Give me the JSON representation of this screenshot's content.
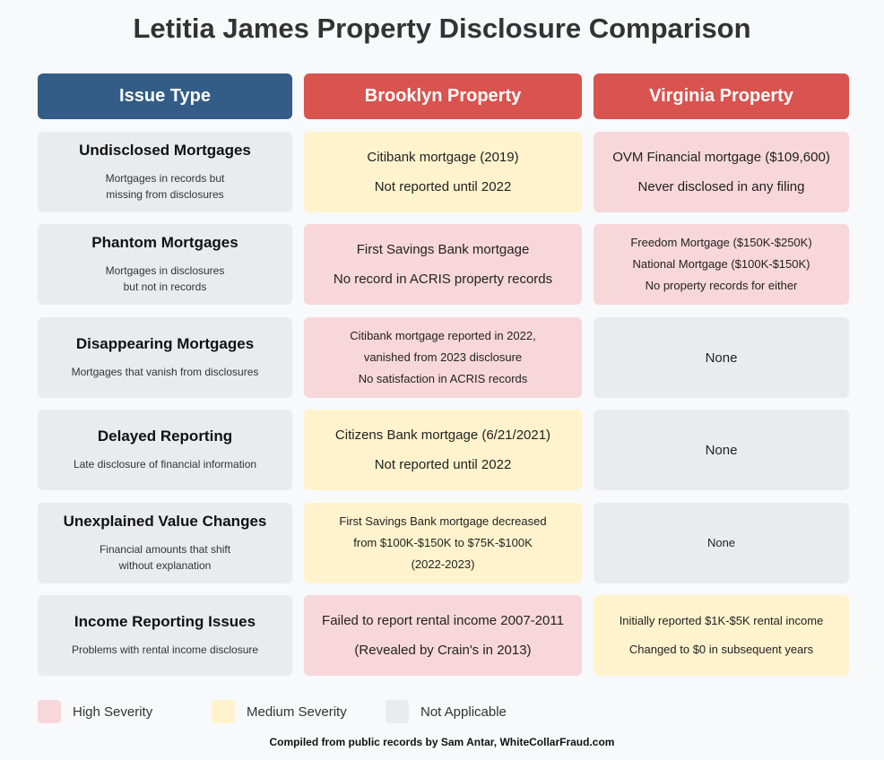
{
  "title": "Letitia James Property Disclosure Comparison",
  "headers": [
    "Issue Type",
    "Brooklyn Property",
    "Virginia Property"
  ],
  "colors": {
    "issue_header": "#335d87",
    "property_header": "#d9534f",
    "high": "#f8d7da",
    "medium": "#fff3cd",
    "not_applicable": "#e9ecef"
  },
  "rows": [
    {
      "title": "Undisclosed Mortgages",
      "desc": "Mortgages in records but\nmissing from disclosures",
      "brooklyn": {
        "severity": "medium",
        "lines": [
          "Citibank mortgage (2019)",
          "Not reported until 2022"
        ]
      },
      "virginia": {
        "severity": "high",
        "lines": [
          "OVM Financial mortgage ($109,600)",
          "Never disclosed in any filing"
        ]
      }
    },
    {
      "title": "Phantom Mortgages",
      "desc": "Mortgages in disclosures\nbut not in records",
      "brooklyn": {
        "severity": "high",
        "lines": [
          "First Savings Bank mortgage",
          "No record in ACRIS property records"
        ]
      },
      "virginia": {
        "severity": "high",
        "lines": [
          "Freedom Mortgage ($150K-$250K)",
          "National Mortgage ($100K-$150K)",
          "No property records for either"
        ]
      }
    },
    {
      "title": "Disappearing Mortgages",
      "desc": "Mortgages that vanish from disclosures",
      "brooklyn": {
        "severity": "high",
        "lines": [
          "Citibank mortgage reported in 2022,",
          "vanished from 2023 disclosure",
          "No satisfaction in ACRIS records"
        ]
      },
      "virginia": {
        "severity": "na",
        "lines": [
          "None"
        ]
      }
    },
    {
      "title": "Delayed Reporting",
      "desc": "Late disclosure of financial information",
      "brooklyn": {
        "severity": "medium",
        "lines": [
          "Citizens Bank mortgage (6/21/2021)",
          "Not reported until 2022"
        ]
      },
      "virginia": {
        "severity": "na",
        "lines": [
          "None"
        ]
      }
    },
    {
      "title": "Unexplained Value Changes",
      "desc": "Financial amounts that shift\nwithout explanation",
      "brooklyn": {
        "severity": "medium",
        "lines": [
          "First Savings Bank mortgage decreased",
          "from $100K-$150K to $75K-$100K",
          "(2022-2023)"
        ]
      },
      "virginia": {
        "severity": "na",
        "lines": [
          "None"
        ]
      }
    },
    {
      "title": "Income Reporting Issues",
      "desc": "Problems with rental income disclosure",
      "brooklyn": {
        "severity": "high",
        "lines": [
          "Failed to report rental income 2007-2011",
          "(Revealed by Crain's in 2013)"
        ]
      },
      "virginia": {
        "severity": "medium",
        "lines": [
          "Initially reported $1K-$5K rental income",
          "Changed to $0 in subsequent years"
        ]
      }
    }
  ],
  "legend": [
    "High Severity",
    "Medium Severity",
    "Not Applicable"
  ],
  "footer": "Compiled from public records by Sam Antar, WhiteCollarFraud.com"
}
